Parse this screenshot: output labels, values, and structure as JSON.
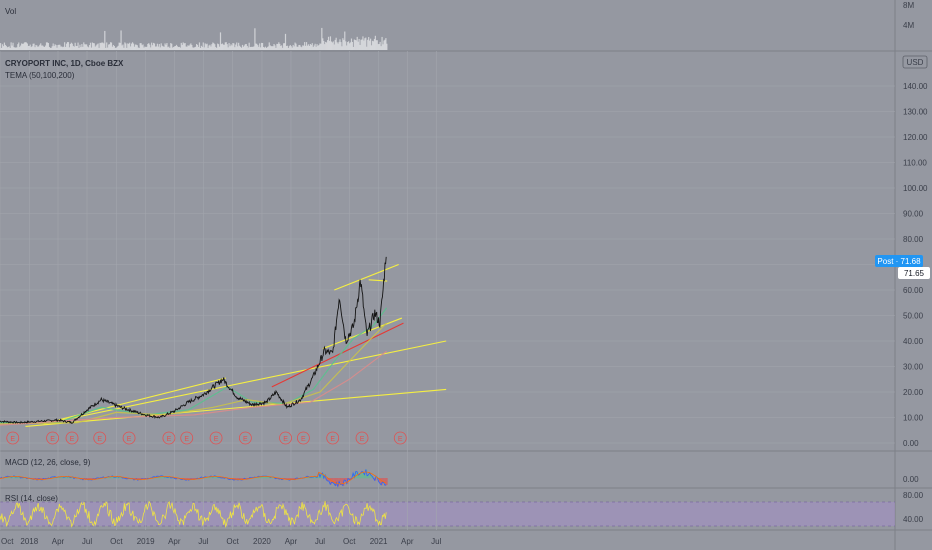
{
  "header": {
    "vol_label": "Vol",
    "symbol_title": "CRYOPORT INC, 1D, Cboe BZX",
    "tema_label": "TEMA (50,100,200)",
    "currency": "USD",
    "macd_label": "MACD (12, 26, close, 9)",
    "rsi_label": "RSI (14, close)"
  },
  "price_badges": {
    "post_label": "Post · 71.68",
    "last_value": "71.65",
    "post_color": "#2196f3"
  },
  "colors": {
    "background": "#9598a1",
    "grid": "#a3a6ae",
    "price": "#141414",
    "trendline_yellow": "#f5ef42",
    "trendline_red": "#e53935",
    "tema_fast": "#5ac18e",
    "tema_mid": "#c9c24a",
    "tema_slow": "#d98c8c",
    "earnings_marker": "#e05252",
    "rsi_band": "#a48fc9"
  },
  "earnings_marker_label": "E",
  "chart_data": {
    "type": "line",
    "title": "CRYOPORT INC, 1D, Cboe BZX",
    "x_axis_ticks": [
      "Oct",
      "2018",
      "Apr",
      "Jul",
      "Oct",
      "2019",
      "Apr",
      "Jul",
      "Oct",
      "2020",
      "Apr",
      "Jul",
      "Oct",
      "2021",
      "Apr",
      "Jul"
    ],
    "x_start": "2017-10-01",
    "y_axis_ticks": [
      "140.00",
      "130.00",
      "120.00",
      "110.00",
      "100.00",
      "90.00",
      "80.00",
      "70.00",
      "60.00",
      "50.00",
      "40.00",
      "30.00",
      "20.00",
      "10.00",
      "0.00"
    ],
    "ylim": [
      0,
      150
    ],
    "volume_axis_ticks": [
      "8M",
      "4M"
    ],
    "macd_axis_ticks": [
      "0.00"
    ],
    "rsi_axis_ticks": [
      "80.00",
      "40.00"
    ],
    "series": [
      {
        "name": "",
        "points": [
          [
            "2017-10-01",
            8.5
          ],
          [
            "2017-12-01",
            8
          ],
          [
            "2018-02-01",
            8.5
          ],
          [
            "2018-04-01",
            9
          ],
          [
            "2018-05-15",
            8
          ],
          [
            "2018-07-01",
            13
          ],
          [
            "2018-08-15",
            17
          ],
          [
            "2018-10-15",
            14
          ],
          [
            "2019-01-01",
            11
          ],
          [
            "2019-02-15",
            10
          ],
          [
            "2019-04-01",
            12.5
          ],
          [
            "2019-05-15",
            16
          ],
          [
            "2019-07-01",
            19
          ],
          [
            "2019-09-01",
            25
          ],
          [
            "2019-10-15",
            18
          ],
          [
            "2019-12-01",
            15
          ],
          [
            "2020-01-15",
            16
          ],
          [
            "2020-02-15",
            20
          ],
          [
            "2020-03-20",
            14
          ],
          [
            "2020-05-01",
            17
          ],
          [
            "2020-06-10",
            26
          ],
          [
            "2020-07-15",
            36
          ],
          [
            "2020-08-10",
            35
          ],
          [
            "2020-08-31",
            58
          ],
          [
            "2020-09-20",
            40
          ],
          [
            "2020-10-15",
            46
          ],
          [
            "2020-11-05",
            64
          ],
          [
            "2020-11-25",
            42
          ],
          [
            "2020-12-20",
            51
          ],
          [
            "2021-01-05",
            47
          ],
          [
            "2021-01-15",
            60
          ],
          [
            "2021-01-26",
            77
          ]
        ]
      },
      {
        "name": "",
        "points": [
          [
            "2017-10-01",
            8
          ],
          [
            "2018-04-01",
            8
          ],
          [
            "2018-08-15",
            14
          ],
          [
            "2019-01-01",
            11
          ],
          [
            "2019-05-15",
            13
          ],
          [
            "2019-09-15",
            22
          ],
          [
            "2019-12-01",
            16
          ],
          [
            "2020-03-20",
            15.5
          ],
          [
            "2020-06-10",
            21
          ],
          [
            "2020-08-15",
            32
          ],
          [
            "2020-10-15",
            41
          ],
          [
            "2020-12-15",
            46
          ],
          [
            "2021-01-26",
            53
          ]
        ]
      },
      {
        "name": "",
        "points": [
          [
            "2017-10-01",
            7.5
          ],
          [
            "2018-06-01",
            8
          ],
          [
            "2018-10-01",
            12
          ],
          [
            "2019-03-01",
            11
          ],
          [
            "2019-08-01",
            14
          ],
          [
            "2019-11-15",
            17
          ],
          [
            "2020-03-01",
            15
          ],
          [
            "2020-07-01",
            20
          ],
          [
            "2020-09-15",
            30
          ],
          [
            "2020-12-01",
            40
          ],
          [
            "2021-01-26",
            47
          ]
        ]
      },
      {
        "name": "",
        "points": [
          [
            "2017-10-01",
            7
          ],
          [
            "2018-10-01",
            10
          ],
          [
            "2019-06-01",
            11
          ],
          [
            "2019-12-01",
            14
          ],
          [
            "2020-06-01",
            16
          ],
          [
            "2020-10-01",
            25
          ],
          [
            "2021-01-26",
            36
          ]
        ]
      }
    ],
    "trendlines": [
      {
        "color": "yellow",
        "from": [
          "2018-04-01",
          9
        ],
        "to": [
          "2019-09-10",
          25.5
        ]
      },
      {
        "color": "yellow",
        "from": [
          "2017-12-20",
          6.5
        ],
        "to": [
          "2021-08-01",
          21
        ]
      },
      {
        "color": "yellow",
        "from": [
          "2018-02-15",
          7.5
        ],
        "to": [
          "2021-08-01",
          40
        ]
      },
      {
        "color": "yellow",
        "from": [
          "2020-07-10",
          37
        ],
        "to": [
          "2021-03-15",
          49
        ]
      },
      {
        "color": "yellow",
        "from": [
          "2020-08-15",
          60
        ],
        "to": [
          "2021-03-05",
          70
        ]
      },
      {
        "color": "yellow",
        "from": [
          "2020-12-01",
          64
        ],
        "to": [
          "2021-01-28",
          63.5
        ]
      },
      {
        "color": "red",
        "from": [
          "2020-02-01",
          22
        ],
        "to": [
          "2021-03-20",
          47
        ]
      }
    ],
    "earnings_dates": [
      "2017-11-10",
      "2018-03-15",
      "2018-05-15",
      "2018-08-10",
      "2018-11-10",
      "2019-03-15",
      "2019-05-10",
      "2019-08-10",
      "2019-11-10",
      "2020-03-15",
      "2020-05-10",
      "2020-08-10",
      "2020-11-10",
      "2021-03-10"
    ],
    "legend": "none",
    "grid": true
  }
}
